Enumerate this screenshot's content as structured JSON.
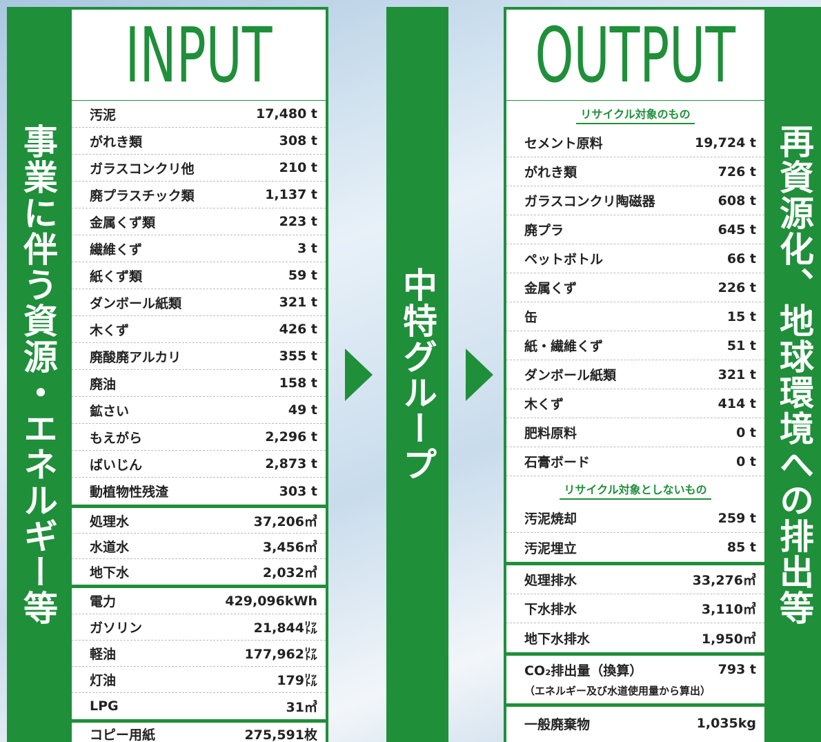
{
  "left_band": "事業に伴う資源・エネルギー等",
  "middle_band": "中特グループ",
  "right_band": "再資源化、地球環境への排出等",
  "input": {
    "title": "INPUT",
    "groups": [
      [
        [
          "汚泥",
          "17,480 t"
        ],
        [
          "がれき類",
          "308 t"
        ],
        [
          "ガラスコンクリ他",
          "210 t"
        ],
        [
          "廃プラスチック類",
          "1,137 t"
        ],
        [
          "金属くず類",
          "223 t"
        ],
        [
          "繊維くず",
          "3 t"
        ],
        [
          "紙くず類",
          "59 t"
        ],
        [
          "ダンボール紙類",
          "321 t"
        ],
        [
          "木くず",
          "426 t"
        ],
        [
          "廃酸廃アルカリ",
          "355 t"
        ],
        [
          "廃油",
          "158 t"
        ],
        [
          "鉱さい",
          "49 t"
        ],
        [
          "もえがら",
          "2,296 t"
        ],
        [
          "ばいじん",
          "2,873 t"
        ],
        [
          "動植物性残渣",
          "303 t"
        ]
      ],
      [
        [
          "処理水",
          "37,206㎥"
        ],
        [
          "水道水",
          "3,456㎥"
        ],
        [
          "地下水",
          "2,032㎥"
        ]
      ],
      [
        [
          "電力",
          "429,096kWh"
        ],
        [
          "ガソリン",
          "21,844㍑"
        ],
        [
          "軽油",
          "177,962㍑"
        ],
        [
          "灯油",
          "179㍑"
        ],
        [
          "LPG",
          "31㎥"
        ]
      ],
      [
        [
          "コピー用紙",
          "275,591枚"
        ]
      ]
    ]
  },
  "output": {
    "title": "OUTPUT",
    "recycle_heading": "リサイクル対象のもの",
    "recycle": [
      [
        "セメント原料",
        "19,724 t"
      ],
      [
        "がれき類",
        "726 t"
      ],
      [
        "ガラスコンクリ陶磁器",
        "608 t"
      ],
      [
        "廃プラ",
        "645 t"
      ],
      [
        "ペットボトル",
        "66 t"
      ],
      [
        "金属くず",
        "226 t"
      ],
      [
        "缶",
        "15 t"
      ],
      [
        "紙・繊維くず",
        "51 t"
      ],
      [
        "ダンボール紙類",
        "321 t"
      ],
      [
        "木くず",
        "414 t"
      ],
      [
        "肥料原料",
        "0 t"
      ],
      [
        "石膏ボード",
        "0 t"
      ]
    ],
    "non_recycle_heading": "リサイクル対象としないもの",
    "non_recycle": [
      [
        "汚泥焼却",
        "259 t"
      ],
      [
        "汚泥埋立",
        "85 t"
      ]
    ],
    "water": [
      [
        "処理排水",
        "33,276㎥"
      ],
      [
        "下水排水",
        "3,110㎥"
      ],
      [
        "地下水排水",
        "1,950㎥"
      ]
    ],
    "co2": {
      "label": "CO₂排出量（換算）",
      "value": "793 t",
      "note": "（エネルギー及び水道使用量から算出）"
    },
    "general": [
      [
        "一般廃棄物",
        "1,035kg"
      ]
    ]
  }
}
